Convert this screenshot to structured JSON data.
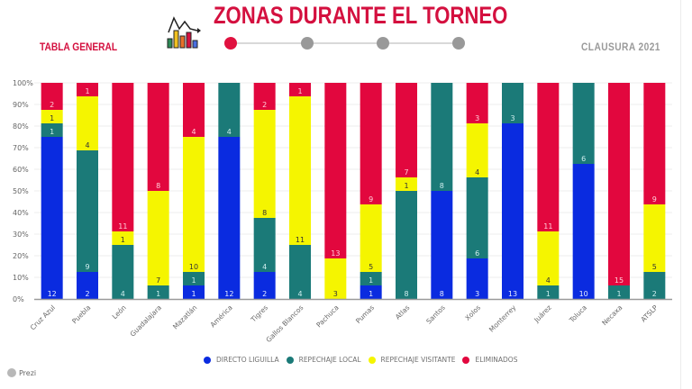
{
  "header": {
    "title": "ZONAS DURANTE EL TORNEO",
    "left_label": "TABLA GENERAL",
    "right_label": "CLAUSURA 2021",
    "logo_icon": "chart-logo-icon",
    "steps": [
      {
        "active": true,
        "color": "#e0113f"
      },
      {
        "active": false,
        "color": "#999999"
      },
      {
        "active": false,
        "color": "#999999"
      },
      {
        "active": false,
        "color": "#999999"
      }
    ]
  },
  "footer": {
    "brand": "Prezi"
  },
  "chart_data": {
    "type": "bar",
    "stacked": true,
    "normalized": "percent",
    "title": "",
    "xlabel": "",
    "ylabel": "",
    "ylim": [
      0,
      100
    ],
    "yticks": [
      "0%",
      "10%",
      "20%",
      "30%",
      "40%",
      "50%",
      "60%",
      "70%",
      "80%",
      "90%",
      "100%"
    ],
    "grid": true,
    "legend_position": "bottom",
    "categories": [
      "Cruz Azul",
      "Puebla",
      "León",
      "Guadalajara",
      "Mazatlán",
      "América",
      "Tigres",
      "Gallos Blancos",
      "Pachuca",
      "Pumas",
      "Atlas",
      "Santos",
      "Xolos",
      "Monterrey",
      "Juárez",
      "Toluca",
      "Necaxa",
      "ATSLP"
    ],
    "series": [
      {
        "name": "DIRECTO LIGUILLA",
        "color": "#0a2be0",
        "label_color": "#e6ecff",
        "values": [
          12,
          2,
          0,
          0,
          1,
          12,
          2,
          0,
          0,
          1,
          0,
          8,
          3,
          13,
          0,
          10,
          0,
          0
        ]
      },
      {
        "name": "REPECHAJE LOCAL",
        "color": "#1b7a78",
        "label_color": "#cfeeee",
        "values": [
          1,
          9,
          4,
          1,
          1,
          4,
          4,
          4,
          0,
          1,
          8,
          8,
          6,
          3,
          1,
          6,
          1,
          2
        ]
      },
      {
        "name": "REPECHAJE VISITANTE",
        "color": "#f5f500",
        "label_color": "#333333",
        "values": [
          1,
          4,
          1,
          7,
          10,
          0,
          8,
          11,
          3,
          5,
          1,
          0,
          4,
          0,
          4,
          0,
          0,
          5
        ]
      },
      {
        "name": "ELIMINADOS",
        "color": "#e2073e",
        "label_color": "#ffd0da",
        "values": [
          2,
          1,
          11,
          8,
          4,
          0,
          2,
          1,
          13,
          9,
          7,
          0,
          3,
          0,
          11,
          0,
          15,
          9
        ]
      }
    ]
  }
}
